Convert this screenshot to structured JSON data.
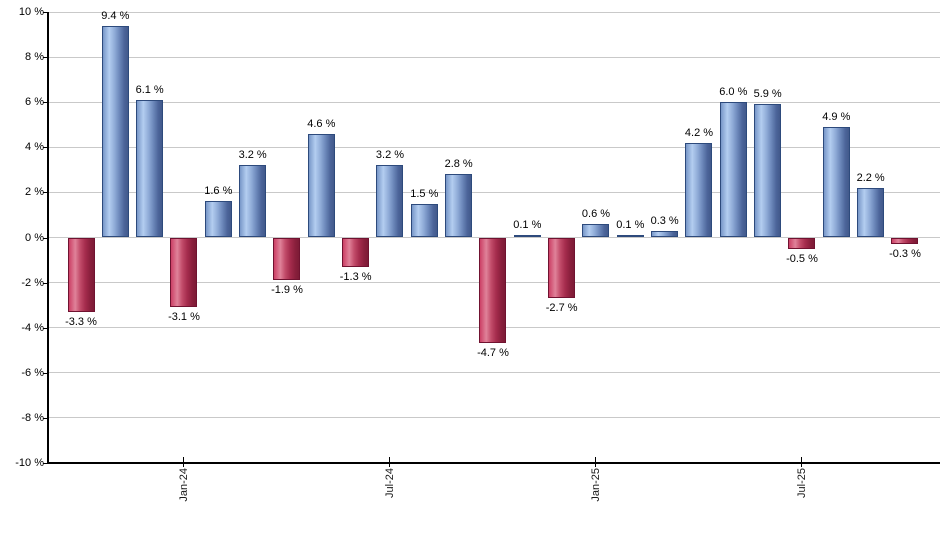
{
  "chart_data": {
    "type": "bar",
    "title": "",
    "xlabel": "",
    "ylabel": "",
    "ylim": [
      -10,
      10
    ],
    "y_tick_step": 2,
    "grid": true,
    "legend": "none",
    "y_tick_labels": [
      "10 %",
      "8 %",
      "6 %",
      "4 %",
      "2 %",
      "0 %",
      "-2 %",
      "-4 %",
      "-6 %",
      "-8 %",
      "-10 %"
    ],
    "x_tick_labels": [
      {
        "bar_index": 3,
        "label": "Jan-24"
      },
      {
        "bar_index": 9,
        "label": "Jul-24"
      },
      {
        "bar_index": 15,
        "label": "Jan-25"
      },
      {
        "bar_index": 21,
        "label": "Jul-25"
      }
    ],
    "bars": [
      {
        "value": -3.3,
        "label": "-3.3 %"
      },
      {
        "value": 9.4,
        "label": "9.4 %"
      },
      {
        "value": 6.1,
        "label": "6.1 %"
      },
      {
        "value": -3.1,
        "label": "-3.1 %"
      },
      {
        "value": 1.6,
        "label": "1.6 %"
      },
      {
        "value": 3.2,
        "label": "3.2 %"
      },
      {
        "value": -1.9,
        "label": "-1.9 %"
      },
      {
        "value": 4.6,
        "label": "4.6 %"
      },
      {
        "value": -1.3,
        "label": "-1.3 %"
      },
      {
        "value": 3.2,
        "label": "3.2 %"
      },
      {
        "value": 1.5,
        "label": "1.5 %"
      },
      {
        "value": 2.8,
        "label": "2.8 %"
      },
      {
        "value": -4.7,
        "label": "-4.7 %"
      },
      {
        "value": 0.1,
        "label": "0.1 %"
      },
      {
        "value": -2.7,
        "label": "-2.7 %"
      },
      {
        "value": 0.6,
        "label": "0.6 %"
      },
      {
        "value": 0.1,
        "label": "0.1 %"
      },
      {
        "value": 0.3,
        "label": "0.3 %"
      },
      {
        "value": 4.2,
        "label": "4.2 %"
      },
      {
        "value": 6.0,
        "label": "6.0 %"
      },
      {
        "value": 5.9,
        "label": "5.9 %"
      },
      {
        "value": -0.5,
        "label": "-0.5 %"
      },
      {
        "value": 4.9,
        "label": "4.9 %"
      },
      {
        "value": 2.2,
        "label": "2.2 %"
      },
      {
        "value": -0.3,
        "label": "-0.3 %"
      }
    ],
    "colors": {
      "positive_fill_light": "#b3cdf0",
      "positive_fill_dark": "#42598b",
      "positive_border": "#2d4a7c",
      "negative_fill_light": "#df8299",
      "negative_fill_dark": "#7c1b36",
      "negative_border": "#701230",
      "gridline": "#c9c9c9",
      "axis": "#000000",
      "label_text": "#000000"
    }
  }
}
